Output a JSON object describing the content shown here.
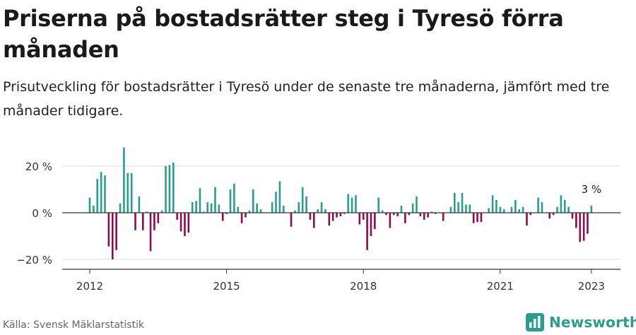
{
  "title": "Priserna på bostadsrätter steg i Tyresö förra månaden",
  "subtitle": "Prisutveckling för bostadsrätter i Tyresö under de senaste tre månaderna, jämfört med tre månader tidigare.",
  "source": "Källa: Svensk Mäklarstatistik",
  "brand": "Newsworthy",
  "colors": {
    "positive": "#2a9d8f",
    "negative": "#8e0c4c",
    "grid": "#dddddd",
    "axis": "#333333",
    "brand": "#2a9d8f"
  },
  "chart_data": {
    "type": "bar",
    "y_unit": "%",
    "ylim": [
      -24,
      30
    ],
    "y_ticks": [
      {
        "value": 20,
        "label": "20 %"
      },
      {
        "value": 0,
        "label": "0 %"
      },
      {
        "value": -20,
        "label": "−20 %"
      }
    ],
    "x_ticks": [
      "2012",
      "2015",
      "2018",
      "2021",
      "2023"
    ],
    "grid": true,
    "annotation": "3 %",
    "series": [
      {
        "points": [
          [
            "2012-01",
            6.5
          ],
          [
            "2012-02",
            3
          ],
          [
            "2012-03",
            14.5
          ],
          [
            "2012-04",
            17.5
          ],
          [
            "2012-05",
            16
          ],
          [
            "2012-06",
            -14.5
          ],
          [
            "2012-07",
            -20
          ],
          [
            "2012-08",
            -16
          ],
          [
            "2012-09",
            4
          ],
          [
            "2012-10",
            28
          ],
          [
            "2012-11",
            17
          ],
          [
            "2012-12",
            17
          ],
          [
            "2013-01",
            -7.5
          ],
          [
            "2013-02",
            7
          ],
          [
            "2013-03",
            -7.5
          ],
          [
            "2013-04",
            0.5
          ],
          [
            "2013-05",
            -16.5
          ],
          [
            "2013-06",
            -7.5
          ],
          [
            "2013-07",
            -4.5
          ],
          [
            "2013-08",
            1
          ],
          [
            "2013-09",
            20
          ],
          [
            "2013-10",
            20.5
          ],
          [
            "2013-11",
            21.5
          ],
          [
            "2013-12",
            -3
          ],
          [
            "2014-01",
            -8
          ],
          [
            "2014-02",
            -10
          ],
          [
            "2014-03",
            -8.5
          ],
          [
            "2014-04",
            4.5
          ],
          [
            "2014-05",
            5
          ],
          [
            "2014-06",
            10.5
          ],
          [
            "2014-07",
            0.5
          ],
          [
            "2014-08",
            4.5
          ],
          [
            "2014-09",
            4
          ],
          [
            "2014-10",
            11
          ],
          [
            "2014-11",
            3.5
          ],
          [
            "2014-12",
            -3.5
          ],
          [
            "2015-01",
            -0.5
          ],
          [
            "2015-02",
            10
          ],
          [
            "2015-03",
            12.5
          ],
          [
            "2015-04",
            2.5
          ],
          [
            "2015-05",
            -4.5
          ],
          [
            "2015-06",
            -2
          ],
          [
            "2015-07",
            1
          ],
          [
            "2015-08",
            10
          ],
          [
            "2015-09",
            4
          ],
          [
            "2015-10",
            1.5
          ],
          [
            "2015-11",
            0
          ],
          [
            "2015-12",
            0
          ],
          [
            "2016-01",
            4.5
          ],
          [
            "2016-02",
            9
          ],
          [
            "2016-03",
            13.5
          ],
          [
            "2016-04",
            3
          ],
          [
            "2016-05",
            0
          ],
          [
            "2016-06",
            -6
          ],
          [
            "2016-07",
            1
          ],
          [
            "2016-08",
            4.5
          ],
          [
            "2016-09",
            11
          ],
          [
            "2016-10",
            7
          ],
          [
            "2016-11",
            -3
          ],
          [
            "2016-12",
            -6.5
          ],
          [
            "2017-01",
            1.5
          ],
          [
            "2017-02",
            4.5
          ],
          [
            "2017-03",
            1.5
          ],
          [
            "2017-04",
            -5.5
          ],
          [
            "2017-05",
            -3.5
          ],
          [
            "2017-06",
            -2
          ],
          [
            "2017-07",
            -1.5
          ],
          [
            "2017-08",
            -0.5
          ],
          [
            "2017-09",
            8
          ],
          [
            "2017-10",
            6.5
          ],
          [
            "2017-11",
            7.5
          ],
          [
            "2017-12",
            -5
          ],
          [
            "2018-01",
            -3
          ],
          [
            "2018-02",
            -16
          ],
          [
            "2018-03",
            -10
          ],
          [
            "2018-04",
            -7
          ],
          [
            "2018-05",
            6.5
          ],
          [
            "2018-06",
            1
          ],
          [
            "2018-07",
            -1
          ],
          [
            "2018-08",
            -6.5
          ],
          [
            "2018-09",
            -1
          ],
          [
            "2018-10",
            -1.5
          ],
          [
            "2018-11",
            3
          ],
          [
            "2018-12",
            -4.5
          ],
          [
            "2019-01",
            -1
          ],
          [
            "2019-02",
            4
          ],
          [
            "2019-03",
            7
          ],
          [
            "2019-04",
            -1.5
          ],
          [
            "2019-05",
            -3
          ],
          [
            "2019-06",
            -2
          ],
          [
            "2019-07",
            0.5
          ],
          [
            "2019-08",
            -0.5
          ],
          [
            "2019-09",
            0
          ],
          [
            "2019-10",
            -3.5
          ],
          [
            "2019-11",
            0
          ],
          [
            "2019-12",
            2.5
          ],
          [
            "2020-01",
            8.5
          ],
          [
            "2020-02",
            4.5
          ],
          [
            "2020-03",
            8.5
          ],
          [
            "2020-04",
            3.5
          ],
          [
            "2020-05",
            3.5
          ],
          [
            "2020-06",
            -4.5
          ],
          [
            "2020-07",
            -4
          ],
          [
            "2020-08",
            -4
          ],
          [
            "2020-09",
            0
          ],
          [
            "2020-10",
            2
          ],
          [
            "2020-11",
            7.5
          ],
          [
            "2020-12",
            5.5
          ],
          [
            "2021-01",
            2.5
          ],
          [
            "2021-02",
            1.5
          ],
          [
            "2021-03",
            0
          ],
          [
            "2021-04",
            2.5
          ],
          [
            "2021-05",
            5.5
          ],
          [
            "2021-06",
            1.5
          ],
          [
            "2021-07",
            2.5
          ],
          [
            "2021-08",
            -5.5
          ],
          [
            "2021-09",
            -1
          ],
          [
            "2021-10",
            0
          ],
          [
            "2021-11",
            6.5
          ],
          [
            "2021-12",
            4.5
          ],
          [
            "2022-01",
            0
          ],
          [
            "2022-02",
            -2.5
          ],
          [
            "2022-03",
            -1
          ],
          [
            "2022-04",
            2.5
          ],
          [
            "2022-05",
            7.5
          ],
          [
            "2022-06",
            5.5
          ],
          [
            "2022-07",
            2.5
          ],
          [
            "2022-08",
            -2.5
          ],
          [
            "2022-09",
            -6.5
          ],
          [
            "2022-10",
            -12.5
          ],
          [
            "2022-11",
            -12
          ],
          [
            "2022-12",
            -9
          ],
          [
            "2023-01",
            3
          ]
        ]
      }
    ]
  }
}
